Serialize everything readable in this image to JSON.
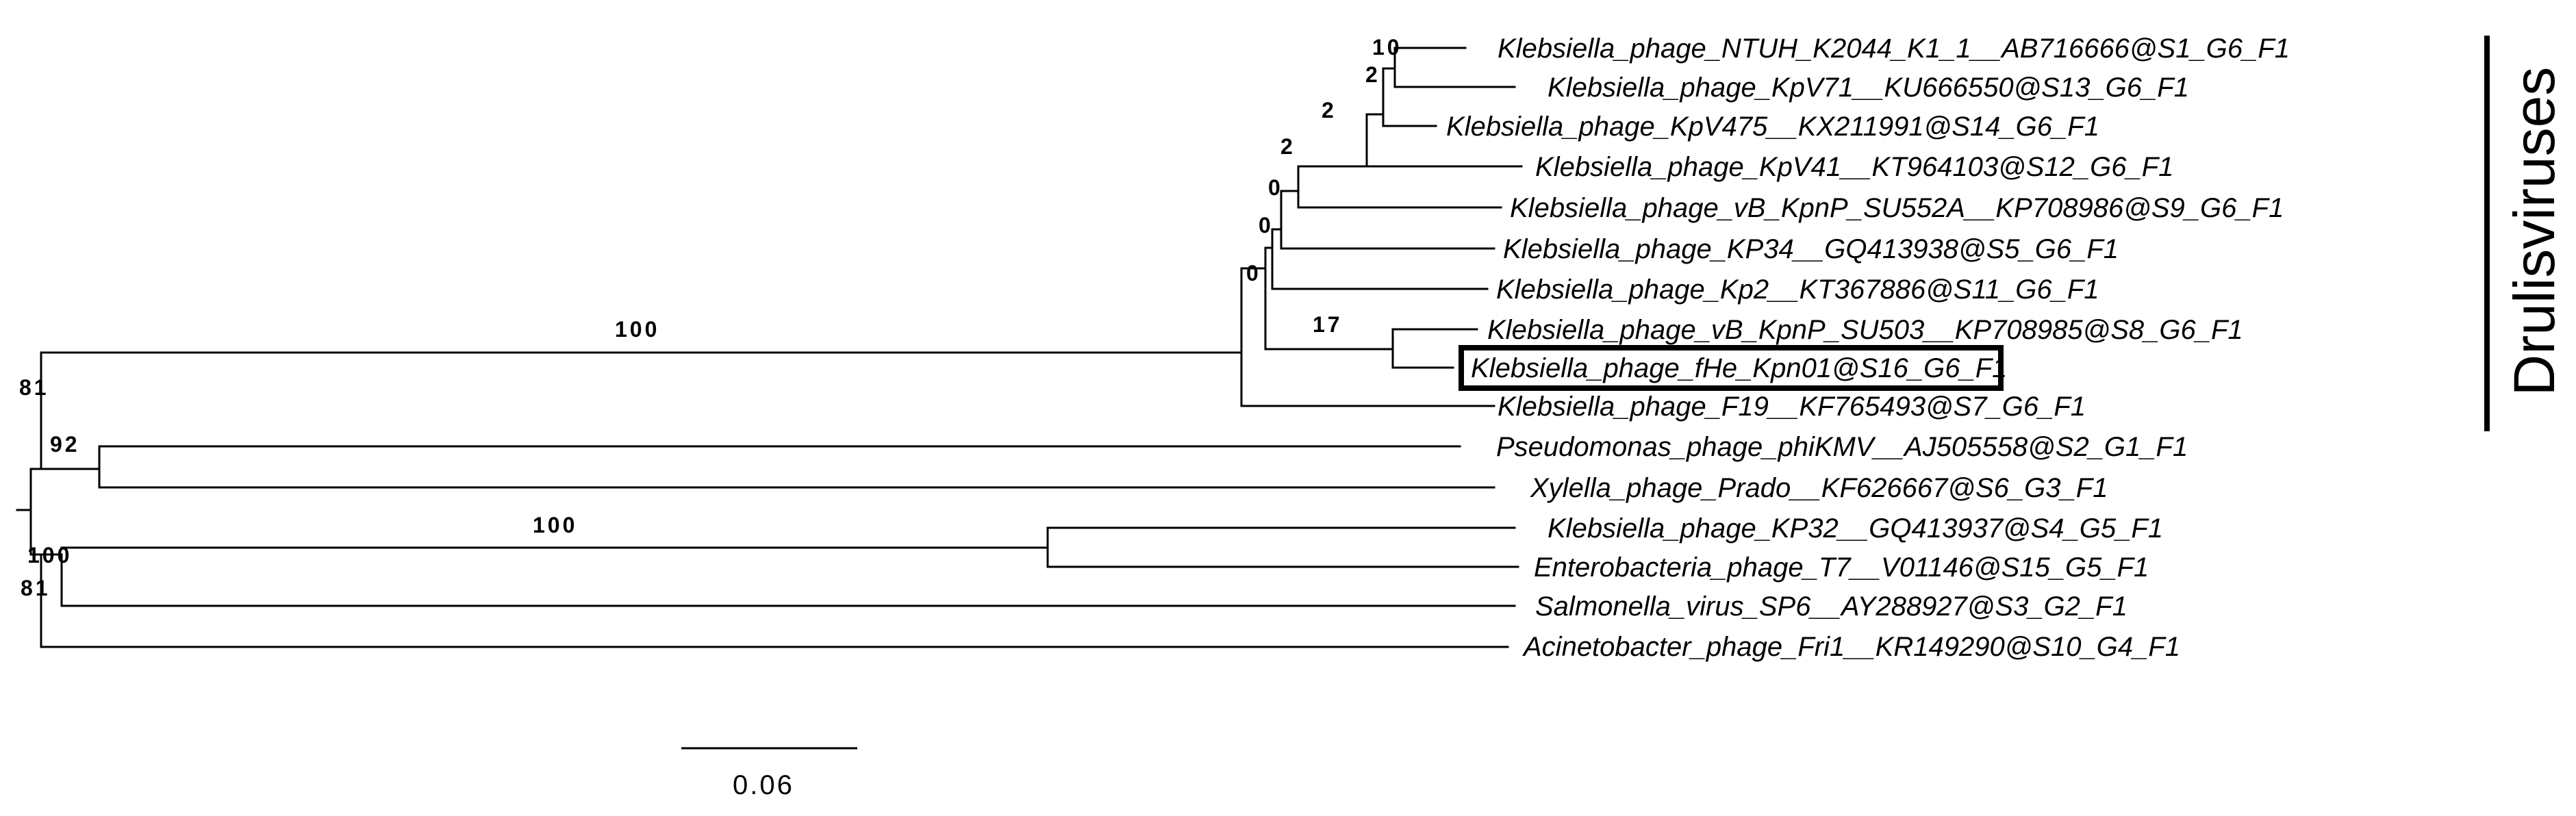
{
  "tips": [
    "Klebsiella_phage_NTUH_K2044_K1_1__AB716666@S1_G6_F1",
    "Klebsiella_phage_KpV71__KU666550@S13_G6_F1",
    "Klebsiella_phage_KpV475__KX211991@S14_G6_F1",
    "Klebsiella_phage_KpV41__KT964103@S12_G6_F1",
    "Klebsiella_phage_vB_KpnP_SU552A__KP708986@S9_G6_F1",
    "Klebsiella_phage_KP34__GQ413938@S5_G6_F1",
    "Klebsiella_phage_Kp2__KT367886@S11_G6_F1",
    "Klebsiella_phage_vB_KpnP_SU503__KP708985@S8_G6_F1",
    "Klebsiella_phage_fHe_Kpn01@S16_G6_F1",
    "Klebsiella_phage_F19__KF765493@S7_G6_F1",
    "Pseudomonas_phage_phiKMV__AJ505558@S2_G1_F1",
    "Xylella_phage_Prado__KF626667@S6_G3_F1",
    "Klebsiella_phage_KP32__GQ413937@S4_G5_F1",
    "Enterobacteria_phage_T7__V01146@S15_G5_F1",
    "Salmonella_virus_SP6__AY288927@S3_G2_F1",
    "Acinetobacter_phage_Fri1__KR149290@S10_G4_F1"
  ],
  "highlighted_tip": "Klebsiella_phage_fHe_Kpn01@S16_G6_F1",
  "support_values": {
    "ntuh_kpv71": "10",
    "kpv475": "2",
    "kpv41": "2",
    "su552a": "2",
    "kp34": "0",
    "kp2": "0",
    "drulis_inner": "0",
    "su503_fhe": "17",
    "drulis_stem": "100",
    "upper_group": "81",
    "phikmv_prado": "92",
    "kp32_t7": "100",
    "t7_group": "100",
    "lower_group": "81"
  },
  "clade_label": "Drulisviruses",
  "scale_bar": {
    "label": "0.06",
    "length": 0.06
  }
}
